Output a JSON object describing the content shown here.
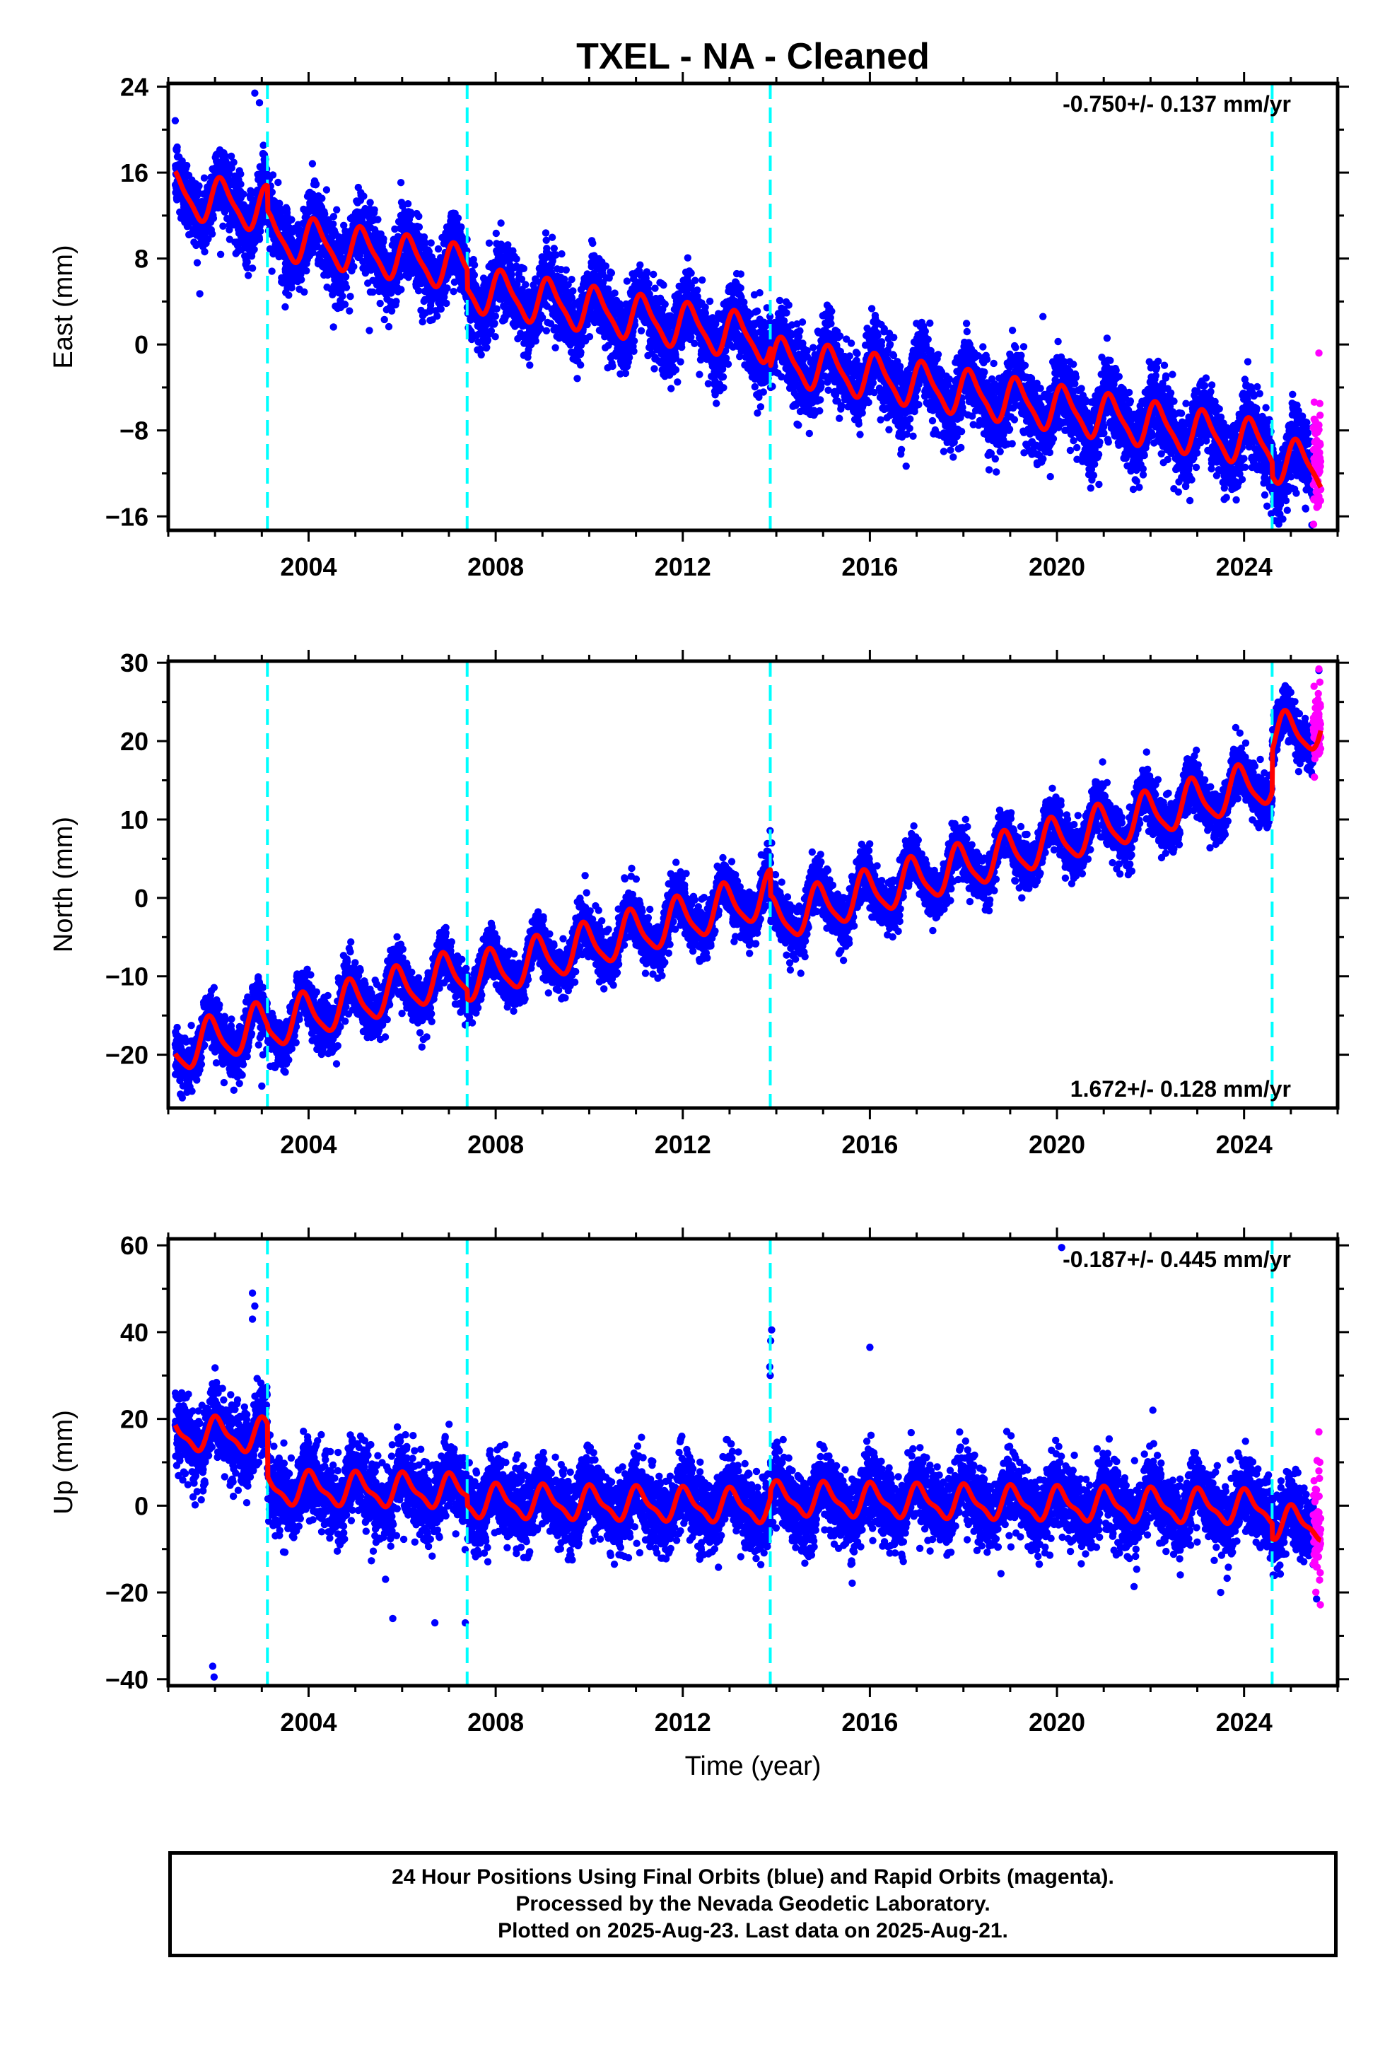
{
  "title": "TXEL  - NA - Cleaned",
  "footer": {
    "line1": "24 Hour Positions Using Final Orbits (blue) and Rapid Orbits (magenta).",
    "line2": "Processed by the Nevada Geodetic Laboratory.",
    "line3": "Plotted on 2025-Aug-23. Last data on 2025-Aug-21."
  },
  "colors": {
    "final": "#0000ff",
    "rapid": "#ff00ff",
    "model": "#ff0000",
    "steps": "#00ffff"
  },
  "chart_data": [
    {
      "type": "scatter",
      "ylabel": "East (mm)",
      "xlabel": "",
      "xlim": [
        2001.0,
        2026.0
      ],
      "ylim": [
        -17.3,
        24.3
      ],
      "xticks": [
        2004,
        2008,
        2012,
        2016,
        2020,
        2024
      ],
      "yticks": [
        -16,
        -8,
        0,
        8,
        16,
        24
      ],
      "rate_label": "-0.750+/- 0.137 mm/yr",
      "rate_position": "top-right",
      "step_years": [
        2003.12,
        2007.39,
        2013.87,
        2024.6
      ],
      "data_start": 2001.15,
      "data_end": 2025.64,
      "rapid_start": 2025.48,
      "model": {
        "breaks": [
          2001.15,
          2003.12,
          2007.39,
          2013.87,
          2024.6
        ],
        "offsets": [
          14.0,
          10.2,
          5.2,
          -1.4,
          -10.7
        ],
        "rate": -0.75,
        "amplitude": 2.0,
        "harmonic2": 0.5,
        "phase": 0.6,
        "post_seismic_decay": 0
      },
      "scatter_sigma": 1.7,
      "outliers": [
        [
          2002.85,
          23.4
        ],
        [
          2002.95,
          22.5
        ],
        [
          2005.3,
          1.3
        ],
        [
          2003.5,
          3.5
        ],
        [
          2019.7,
          2.6
        ],
        [
          2025.45,
          -16.8
        ]
      ],
      "rapid_outliers": [
        [
          2025.6,
          -0.8
        ],
        [
          2025.62,
          -5.5
        ],
        [
          2025.6,
          -7.5
        ]
      ]
    },
    {
      "type": "scatter",
      "ylabel": "North (mm)",
      "xlabel": "",
      "xlim": [
        2001.0,
        2026.0
      ],
      "ylim": [
        -26.8,
        30.2
      ],
      "xticks": [
        2004,
        2008,
        2012,
        2016,
        2020,
        2024
      ],
      "yticks": [
        -20,
        -10,
        0,
        10,
        20,
        30
      ],
      "rate_label": "1.672+/- 0.128 mm/yr",
      "rate_position": "bottom-right",
      "step_years": [
        2003.12,
        2007.39,
        2013.87,
        2024.6
      ],
      "data_start": 2001.15,
      "data_end": 2025.64,
      "rapid_start": 2025.48,
      "model": {
        "breaks": [
          2001.15,
          2003.12,
          2007.39,
          2013.87,
          2024.6
        ],
        "offsets": [
          -19.5,
          -16.5,
          -10.5,
          -3.0,
          20.2
        ],
        "rate": 1.672,
        "amplitude": 2.8,
        "harmonic2": 0.6,
        "phase": 2.2,
        "post_seismic_decay": 0
      },
      "scatter_sigma": 1.6,
      "outliers": [
        [
          2003.0,
          -24.0
        ],
        [
          2001.3,
          -25.5
        ],
        [
          2013.9,
          7.0
        ],
        [
          2025.6,
          29.0
        ]
      ],
      "rapid_outliers": [
        [
          2025.6,
          29.2
        ],
        [
          2025.62,
          22.5
        ]
      ]
    },
    {
      "type": "scatter",
      "ylabel": "Up (mm)",
      "xlabel": "Time (year)",
      "xlim": [
        2001.0,
        2026.0
      ],
      "ylim": [
        -41.5,
        61.5
      ],
      "xticks": [
        2004,
        2008,
        2012,
        2016,
        2020,
        2024
      ],
      "yticks": [
        -40,
        -20,
        0,
        20,
        40,
        60
      ],
      "rate_label": "-0.187+/- 0.445 mm/yr",
      "rate_position": "top-right",
      "step_years": [
        2003.12,
        2007.39,
        2013.87,
        2024.6
      ],
      "data_start": 2001.15,
      "data_end": 2025.64,
      "rapid_start": 2025.48,
      "model": {
        "breaks": [
          2001.15,
          2003.12,
          2007.39,
          2013.87,
          2024.6
        ],
        "offsets": [
          16.5,
          4.0,
          1.0,
          1.5,
          -4.0
        ],
        "rate": -0.187,
        "amplitude": 3.5,
        "harmonic2": 1.2,
        "phase": 1.2,
        "post_seismic_decay": 0
      },
      "scatter_sigma": 4.2,
      "outliers": [
        [
          2002.8,
          49
        ],
        [
          2002.85,
          46
        ],
        [
          2002.8,
          43
        ],
        [
          2001.95,
          -37
        ],
        [
          2001.98,
          -39.5
        ],
        [
          2013.9,
          40.5
        ],
        [
          2013.88,
          38
        ],
        [
          2013.86,
          32
        ],
        [
          2013.87,
          30
        ],
        [
          2016.0,
          36.5
        ],
        [
          2020.1,
          59.5
        ],
        [
          2022.05,
          22
        ],
        [
          2023.5,
          -20
        ],
        [
          2006.7,
          -27
        ],
        [
          2007.35,
          -27
        ],
        [
          2005.8,
          -26
        ],
        [
          2025.55,
          -21.5
        ]
      ],
      "rapid_outliers": [
        [
          2025.6,
          17
        ],
        [
          2025.62,
          10
        ],
        [
          2025.6,
          8
        ],
        [
          2025.61,
          -3
        ]
      ]
    }
  ]
}
